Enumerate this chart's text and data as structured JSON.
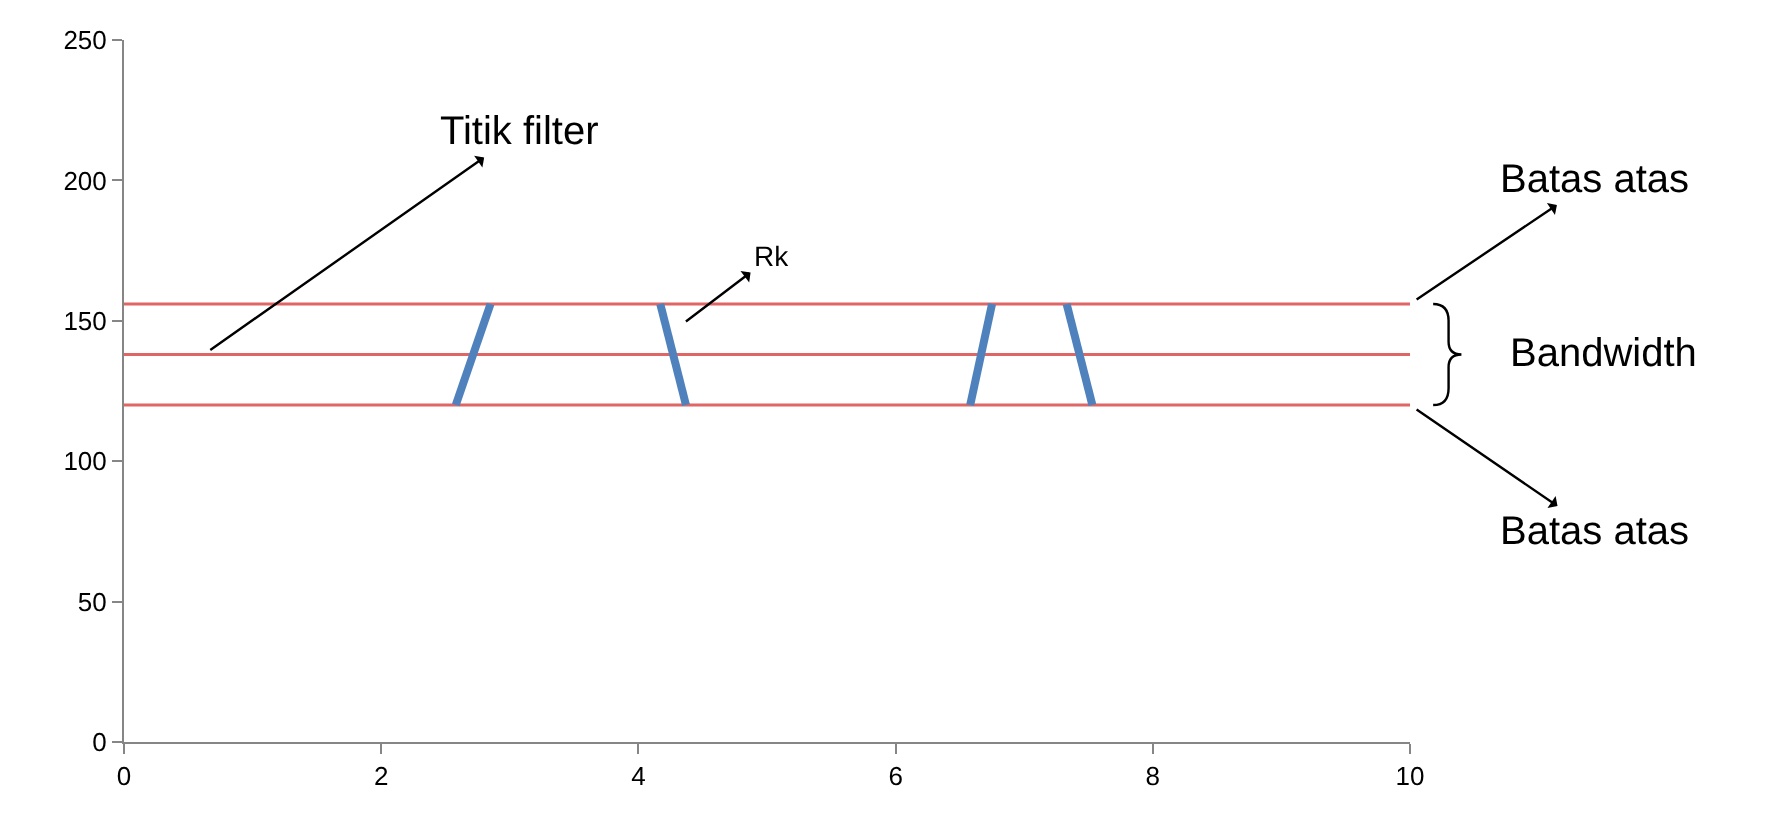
{
  "chart_data": {
    "type": "line",
    "series": [
      {
        "color": "#e06666",
        "x": [
          0,
          10
        ],
        "values": [
          156,
          156
        ]
      },
      {
        "color": "#e06666",
        "x": [
          0,
          10
        ],
        "values": [
          138,
          138
        ]
      },
      {
        "color": "#e06666",
        "x": [
          0,
          10
        ],
        "values": [
          120,
          120
        ]
      },
      {
        "color": "#4f81bd",
        "x": [
          2.58,
          2.85
        ],
        "values": [
          120,
          156
        ]
      },
      {
        "color": "#4f81bd",
        "x": [
          4.17,
          4.37
        ],
        "values": [
          156,
          120
        ]
      },
      {
        "color": "#4f81bd",
        "x": [
          6.58,
          6.75
        ],
        "values": [
          120,
          156
        ]
      },
      {
        "color": "#4f81bd",
        "x": [
          7.33,
          7.53
        ],
        "values": [
          156,
          120
        ]
      }
    ],
    "annotations": [
      {
        "text": "Titik filter",
        "x": 0.62,
        "y": 138
      },
      {
        "text": "Rk",
        "x": 4.32,
        "y": 148
      },
      {
        "text": "Batas atas",
        "x": 10,
        "y": 156
      },
      "Bandwidth",
      {
        "text": "Batas atas",
        "x": 10,
        "y": 120
      }
    ],
    "xlim": [
      0,
      10
    ],
    "xticks": [
      0,
      2,
      4,
      6,
      8,
      10
    ],
    "ylim": [
      0,
      250
    ],
    "yticks": [
      0,
      50,
      100,
      150,
      200,
      250
    ],
    "marker": "none",
    "line_style": "solid"
  }
}
